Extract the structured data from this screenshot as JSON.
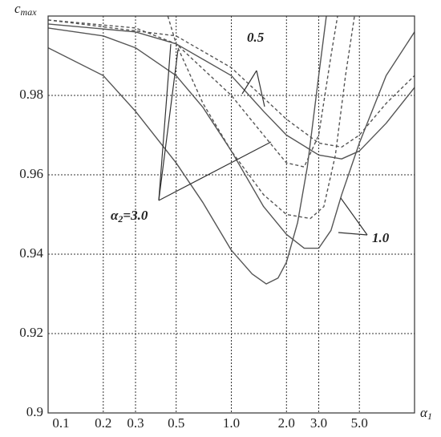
{
  "chart_data": {
    "type": "line",
    "ylabel": [
      "c",
      "max"
    ],
    "xlabel": [
      "α",
      "1"
    ],
    "xscale": "log",
    "xlim": [
      0.1,
      10
    ],
    "ylim": [
      0.9,
      1.0
    ],
    "xticks": [
      0.1,
      0.2,
      0.3,
      0.5,
      {
        "value": 1,
        "label": "1.0"
      },
      {
        "value": 2,
        "label": "2.0"
      },
      {
        "value": 3,
        "label": "3.0"
      },
      {
        "value": 5,
        "label": "5.0"
      }
    ],
    "yticks": [
      0.9,
      0.92,
      0.94,
      0.96,
      0.98
    ],
    "grid": true,
    "annotations": {
      "a": "0.5",
      "b": "1.0",
      "c": [
        "α",
        "2",
        "=3.0"
      ]
    },
    "series": [
      {
        "color": "#555555",
        "dash": false,
        "x": [
          0.1,
          0.2,
          0.3,
          0.5,
          0.7,
          1.0,
          1.3,
          1.55,
          1.8,
          2.0,
          2.3,
          2.6,
          3.0,
          3.3
        ],
        "values": [
          0.992,
          0.985,
          0.976,
          0.963,
          0.953,
          0.941,
          0.935,
          0.9325,
          0.934,
          0.938,
          0.948,
          0.962,
          0.985,
          1.0
        ]
      },
      {
        "color": "#555555",
        "dash": false,
        "x": [
          0.1,
          0.2,
          0.3,
          0.5,
          0.7,
          1.0,
          1.5,
          2.0,
          2.5,
          3.0,
          3.5,
          4.0,
          5.0,
          7.0,
          10
        ],
        "values": [
          0.997,
          0.995,
          0.992,
          0.985,
          0.977,
          0.966,
          0.952,
          0.945,
          0.9415,
          0.9415,
          0.946,
          0.955,
          0.968,
          0.985,
          0.996
        ]
      },
      {
        "color": "#555555",
        "dash": false,
        "x": [
          0.1,
          0.3,
          0.5,
          1.0,
          1.5,
          2.0,
          3.0,
          4.0,
          5.0,
          7.0,
          10
        ],
        "values": [
          0.998,
          0.996,
          0.993,
          0.985,
          0.976,
          0.97,
          0.965,
          0.964,
          0.966,
          0.973,
          0.982
        ]
      },
      {
        "color": "#555555",
        "dash": true,
        "x": [
          0.45,
          0.5,
          0.7,
          1.0,
          1.5,
          2.0,
          2.7,
          3.2,
          3.7,
          4.2,
          4.7
        ],
        "values": [
          1.0,
          0.993,
          0.978,
          0.966,
          0.955,
          0.95,
          0.949,
          0.952,
          0.965,
          0.985,
          1.0
        ]
      },
      {
        "color": "#555555",
        "dash": true,
        "x": [
          0.1,
          0.3,
          0.5,
          1.0,
          1.5,
          2.0,
          2.5,
          3.0,
          3.5,
          3.8
        ],
        "values": [
          0.999,
          0.997,
          0.993,
          0.98,
          0.97,
          0.963,
          0.962,
          0.97,
          0.99,
          1.0
        ]
      },
      {
        "color": "#555555",
        "dash": true,
        "x": [
          0.1,
          0.5,
          1.0,
          2.0,
          3.0,
          4.0,
          5.0,
          7.0,
          10
        ],
        "values": [
          0.999,
          0.995,
          0.987,
          0.974,
          0.968,
          0.967,
          0.97,
          0.978,
          0.985
        ]
      }
    ]
  }
}
